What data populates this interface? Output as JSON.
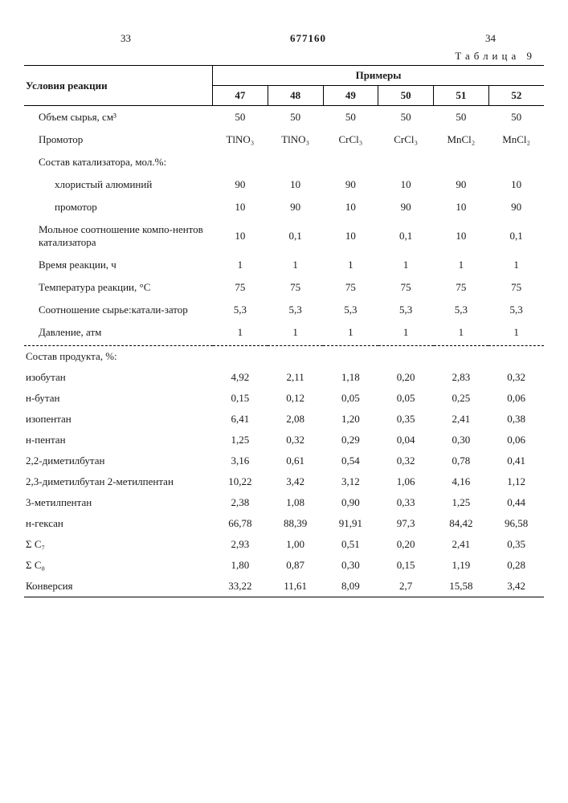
{
  "header": {
    "left_page": "33",
    "doc_number": "677160",
    "right_page": "34"
  },
  "caption": "Таблица  9",
  "columns": {
    "cond": "Условия реакции",
    "examples": "Примеры",
    "nums": [
      "47",
      "48",
      "49",
      "50",
      "51",
      "52"
    ]
  },
  "rows_top": [
    {
      "label": "Объем сырья, см³",
      "v": [
        "50",
        "50",
        "50",
        "50",
        "50",
        "50"
      ]
    },
    {
      "label": "Промотор",
      "v": [
        "TlNO₃",
        "TlNO₃",
        "CrCl₃",
        "CrCl₃",
        "MnCl₂",
        "MnCl₂"
      ]
    },
    {
      "label": "Состав катализатора, мол.%:",
      "v": [
        "",
        "",
        "",
        "",
        "",
        ""
      ]
    },
    {
      "label_indent": "хлористый алюминий",
      "v": [
        "90",
        "10",
        "90",
        "10",
        "90",
        "10"
      ]
    },
    {
      "label_indent": "промотор",
      "v": [
        "10",
        "90",
        "10",
        "90",
        "10",
        "90"
      ]
    },
    {
      "label": "Мольное соотношение компо-нентов катализатора",
      "v": [
        "10",
        "0,1",
        "10",
        "0,1",
        "10",
        "0,1"
      ]
    },
    {
      "label": "Время реакции, ч",
      "v": [
        "1",
        "1",
        "1",
        "1",
        "1",
        "1"
      ]
    },
    {
      "label": "Температура реакции, °С",
      "v": [
        "75",
        "75",
        "75",
        "75",
        "75",
        "75"
      ]
    },
    {
      "label": "Соотношение сырье:катали-затор",
      "v": [
        "5,3",
        "5,3",
        "5,3",
        "5,3",
        "5,3",
        "5,3"
      ]
    },
    {
      "label": "Давление, атм",
      "v": [
        "1",
        "1",
        "1",
        "1",
        "1",
        "1"
      ]
    }
  ],
  "rows_bottom": [
    {
      "label": "Состав продукта, %:",
      "v": [
        "",
        "",
        "",
        "",
        "",
        ""
      ]
    },
    {
      "label_indent": "изобутан",
      "v": [
        "4,92",
        "2,11",
        "1,18",
        "0,20",
        "2,83",
        "0,32"
      ]
    },
    {
      "label_indent": "н-бутан",
      "v": [
        "0,15",
        "0,12",
        "0,05",
        "0,05",
        "0,25",
        "0,06"
      ]
    },
    {
      "label_indent": "изопентан",
      "v": [
        "6,41",
        "2,08",
        "1,20",
        "0,35",
        "2,41",
        "0,38"
      ]
    },
    {
      "label_indent": "н-пентан",
      "v": [
        "1,25",
        "0,32",
        "0,29",
        "0,04",
        "0,30",
        "0,06"
      ]
    },
    {
      "label_indent": "2,2-диметилбутан",
      "v": [
        "3,16",
        "0,61",
        "0,54",
        "0,32",
        "0,78",
        "0,41"
      ]
    },
    {
      "label_indent": "2,3-диметилбутан 2-метилпентан",
      "v": [
        "10,22",
        "3,42",
        "3,12",
        "1,06",
        "4,16",
        "1,12"
      ]
    },
    {
      "label_indent": "3-метилпентан",
      "v": [
        "2,38",
        "1,08",
        "0,90",
        "0,33",
        "1,25",
        "0,44"
      ]
    },
    {
      "label_indent": "н-гексан",
      "v": [
        "66,78",
        "88,39",
        "91,91",
        "97,3",
        "84,42",
        "96,58"
      ]
    },
    {
      "label_indent": "Σ С₇",
      "v": [
        "2,93",
        "1,00",
        "0,51",
        "0,20",
        "2,41",
        "0,35"
      ]
    },
    {
      "label_indent": "Σ С₈",
      "v": [
        "1,80",
        "0,87",
        "0,30",
        "0,15",
        "1,19",
        "0,28"
      ]
    },
    {
      "label": "Конверсия",
      "v": [
        "33,22",
        "11,61",
        "8,09",
        "2,7",
        "15,58",
        "3,42"
      ]
    }
  ]
}
